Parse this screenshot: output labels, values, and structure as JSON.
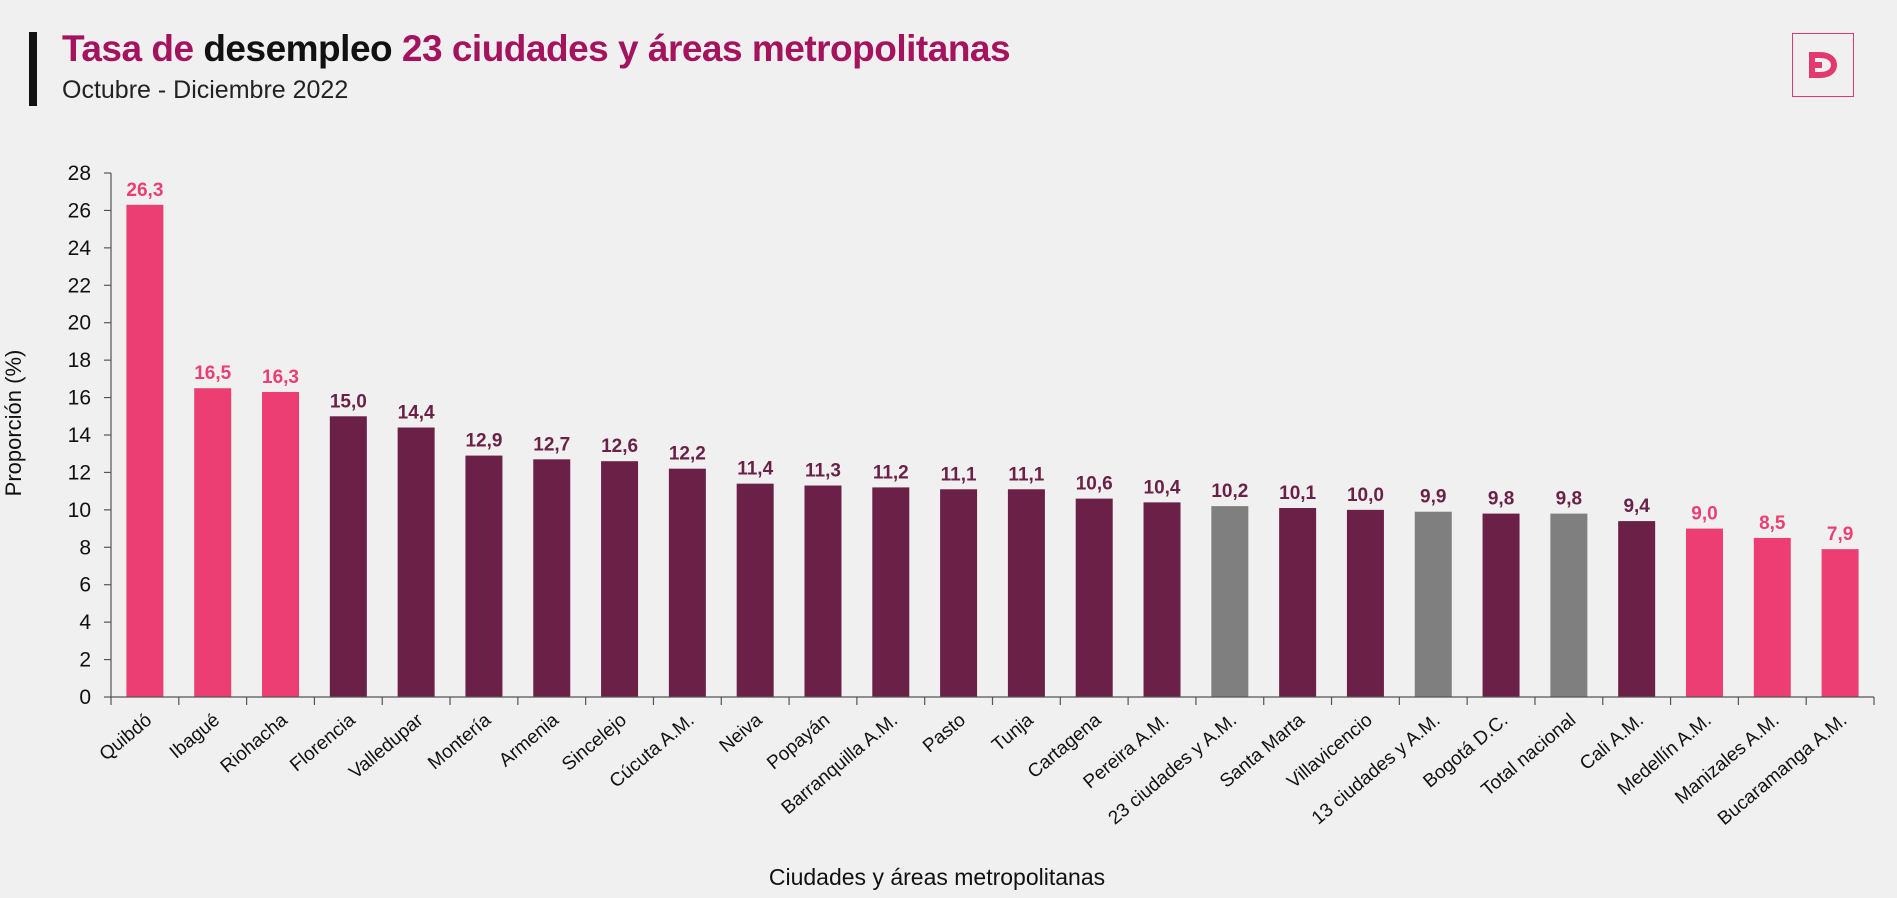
{
  "header": {
    "title_part1": "Tasa de",
    "title_part2": "desempleo",
    "title_part3": "23 ciudades y áreas metropolitanas",
    "subtitle": "Octubre - Diciembre 2022"
  },
  "logo": {
    "icon": "dane-d-logo-icon"
  },
  "colors": {
    "pink": "#ec3e72",
    "purple": "#6b2147",
    "gray": "#7f7f7f",
    "title_accent": "#a4135e"
  },
  "chart_data": {
    "type": "bar",
    "title": "Tasa de desempleo 23 ciudades y áreas metropolitanas",
    "subtitle": "Octubre - Diciembre 2022",
    "xlabel": "Ciudades y áreas metropolitanas",
    "ylabel": "Proporción (%)",
    "ylim": [
      0,
      28
    ],
    "yticks": [
      0,
      2,
      4,
      6,
      8,
      10,
      12,
      14,
      16,
      18,
      20,
      22,
      24,
      26,
      28
    ],
    "grid": false,
    "categories": [
      "Quibdó",
      "Ibagué",
      "Riohacha",
      "Florencia",
      "Valledupar",
      "Montería",
      "Armenia",
      "Sincelejo",
      "Cúcuta A.M.",
      "Neiva",
      "Popayán",
      "Barranquilla A.M.",
      "Pasto",
      "Tunja",
      "Cartagena",
      "Pereira A.M.",
      "23 ciudades y A.M.",
      "Santa Marta",
      "Villavicencio",
      "13 ciudades y A.M.",
      "Bogotá D.C.",
      "Total nacional",
      "Cali A.M.",
      "Medellín A.M.",
      "Manizales A.M.",
      "Bucaramanga A.M."
    ],
    "values": [
      26.3,
      16.5,
      16.3,
      15.0,
      14.4,
      12.9,
      12.7,
      12.6,
      12.2,
      11.4,
      11.3,
      11.2,
      11.1,
      11.1,
      10.6,
      10.4,
      10.2,
      10.1,
      10.0,
      9.9,
      9.8,
      9.8,
      9.4,
      9.0,
      8.5,
      7.9
    ],
    "labels": [
      "26,3",
      "16,5",
      "16,3",
      "15,0",
      "14,4",
      "12,9",
      "12,7",
      "12,6",
      "12,2",
      "11,4",
      "11,3",
      "11,2",
      "11,1",
      "11,1",
      "10,6",
      "10,4",
      "10,2",
      "10,1",
      "10,0",
      "9,9",
      "9,8",
      "9,8",
      "9,4",
      "9,0",
      "8,5",
      "7,9"
    ],
    "bar_color_groups": [
      "pink",
      "pink",
      "pink",
      "purple",
      "purple",
      "purple",
      "purple",
      "purple",
      "purple",
      "purple",
      "purple",
      "purple",
      "purple",
      "purple",
      "purple",
      "purple",
      "gray",
      "purple",
      "purple",
      "gray",
      "purple",
      "gray",
      "purple",
      "pink",
      "pink",
      "pink"
    ]
  }
}
